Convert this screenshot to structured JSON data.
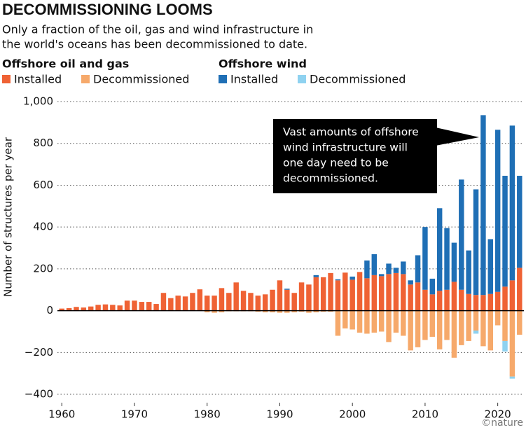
{
  "chart_data": {
    "type": "stacked_bar",
    "title": "DECOMMISSIONING LOOMS",
    "subtitle": [
      "Only a fraction of the oil, gas and wind infrastructure in",
      "the world's oceans has been decommissioned to date."
    ],
    "legend_groups": [
      "Offshore oil and gas",
      "Offshore wind"
    ],
    "y_label": "Number of structures per year",
    "annotation": [
      "Vast amounts of offshore",
      "wind infrastructure will",
      "one day need to be",
      "decommissioned."
    ],
    "credit": "©nature",
    "x": [
      1960,
      1961,
      1962,
      1963,
      1964,
      1965,
      1966,
      1967,
      1968,
      1969,
      1970,
      1971,
      1972,
      1973,
      1974,
      1975,
      1976,
      1977,
      1978,
      1979,
      1980,
      1981,
      1982,
      1983,
      1984,
      1985,
      1986,
      1987,
      1988,
      1989,
      1990,
      1991,
      1992,
      1993,
      1994,
      1995,
      1996,
      1997,
      1998,
      1999,
      2000,
      2001,
      2002,
      2003,
      2004,
      2005,
      2006,
      2007,
      2008,
      2009,
      2010,
      2011,
      2012,
      2013,
      2014,
      2015,
      2016,
      2017,
      2018,
      2019,
      2020,
      2021,
      2022,
      2023
    ],
    "series": [
      {
        "name": "Installed",
        "group": 0,
        "color": "#ef6234",
        "values": [
          10,
          12,
          18,
          15,
          20,
          28,
          30,
          28,
          25,
          48,
          48,
          42,
          42,
          32,
          85,
          60,
          72,
          68,
          85,
          102,
          72,
          72,
          108,
          85,
          135,
          95,
          85,
          72,
          78,
          100,
          145,
          100,
          85,
          135,
          125,
          160,
          160,
          180,
          145,
          182,
          148,
          185,
          155,
          170,
          165,
          175,
          180,
          175,
          125,
          135,
          100,
          78,
          95,
          100,
          138,
          100,
          80,
          75,
          75,
          80,
          90,
          115,
          145,
          205
        ]
      },
      {
        "name": "Decommissioned",
        "group": 0,
        "color": "#f6a96b",
        "values": [
          0,
          0,
          0,
          0,
          0,
          0,
          0,
          0,
          0,
          0,
          0,
          0,
          0,
          0,
          0,
          0,
          0,
          0,
          0,
          0,
          -8,
          -10,
          -8,
          -3,
          -3,
          -3,
          -3,
          -5,
          -8,
          -8,
          -10,
          -10,
          -8,
          -5,
          -10,
          -8,
          -5,
          -5,
          -120,
          -85,
          -90,
          -105,
          -110,
          -105,
          -100,
          -150,
          -105,
          -120,
          -190,
          -175,
          -140,
          -125,
          -185,
          -140,
          -225,
          -165,
          -145,
          -95,
          -170,
          -190,
          -70,
          -145,
          -315,
          -115
        ]
      },
      {
        "name": "Installed",
        "group": 1,
        "color": "#1f6fb5",
        "values": [
          0,
          0,
          0,
          0,
          0,
          0,
          0,
          0,
          0,
          0,
          0,
          0,
          0,
          0,
          0,
          0,
          0,
          0,
          0,
          0,
          0,
          0,
          0,
          0,
          0,
          0,
          0,
          0,
          0,
          0,
          0,
          5,
          0,
          0,
          0,
          10,
          0,
          0,
          5,
          0,
          15,
          0,
          85,
          100,
          10,
          50,
          25,
          60,
          20,
          130,
          300,
          75,
          395,
          295,
          187,
          527,
          208,
          505,
          860,
          262,
          775,
          530,
          740,
          440
        ]
      },
      {
        "name": "Decommissioned",
        "group": 1,
        "color": "#8fd2f0",
        "values": [
          0,
          0,
          0,
          0,
          0,
          0,
          0,
          0,
          0,
          0,
          0,
          0,
          0,
          0,
          0,
          0,
          0,
          0,
          0,
          0,
          0,
          0,
          0,
          0,
          0,
          0,
          0,
          0,
          0,
          0,
          0,
          0,
          0,
          0,
          0,
          0,
          0,
          0,
          0,
          0,
          0,
          0,
          0,
          0,
          0,
          0,
          0,
          0,
          0,
          0,
          0,
          0,
          0,
          0,
          0,
          0,
          0,
          -15,
          0,
          0,
          0,
          -50,
          -10,
          0
        ]
      }
    ],
    "xlim": [
      1959.4,
      2023.6
    ],
    "xticks": [
      1960,
      1970,
      1980,
      1990,
      2000,
      2010,
      2020
    ],
    "ylim": [
      -440,
      1000
    ],
    "yticks": [
      {
        "value": -400,
        "label": "−400"
      },
      {
        "value": -200,
        "label": "−200"
      },
      0,
      200,
      400,
      600,
      800,
      {
        "value": 1000,
        "label": "1,000"
      }
    ],
    "grid": true
  }
}
